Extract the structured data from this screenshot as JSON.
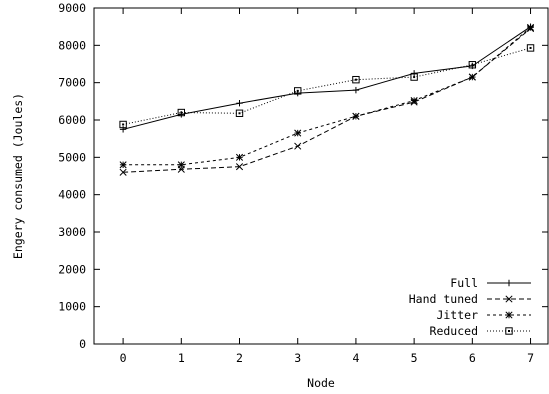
{
  "chart_data": {
    "type": "line",
    "xlabel": "Node",
    "ylabel": "Engery consumed (Joules)",
    "x": [
      0,
      1,
      2,
      3,
      4,
      5,
      6,
      7
    ],
    "xlim": [
      -0.5,
      7.3
    ],
    "ylim": [
      0,
      9000
    ],
    "yticks": [
      0,
      1000,
      2000,
      3000,
      4000,
      5000,
      6000,
      7000,
      8000,
      9000
    ],
    "grid": false,
    "legend_position": "bottom-right",
    "series": [
      {
        "name": "Full",
        "marker": "plus",
        "dash": "",
        "values": [
          5750,
          6150,
          6450,
          6720,
          6800,
          7250,
          7450,
          8500
        ]
      },
      {
        "name": "Hand tuned",
        "marker": "cross",
        "dash": "5,3",
        "values": [
          4600,
          4680,
          4750,
          5300,
          6100,
          6480,
          7150,
          8450
        ]
      },
      {
        "name": "Jitter",
        "marker": "star",
        "dash": "3,3",
        "values": [
          4800,
          4800,
          5000,
          5650,
          6100,
          6520,
          7150,
          8480
        ]
      },
      {
        "name": "Reduced",
        "marker": "box",
        "dash": "1,2",
        "values": [
          5880,
          6200,
          6180,
          6780,
          7080,
          7150,
          7480,
          7930
        ]
      }
    ]
  }
}
